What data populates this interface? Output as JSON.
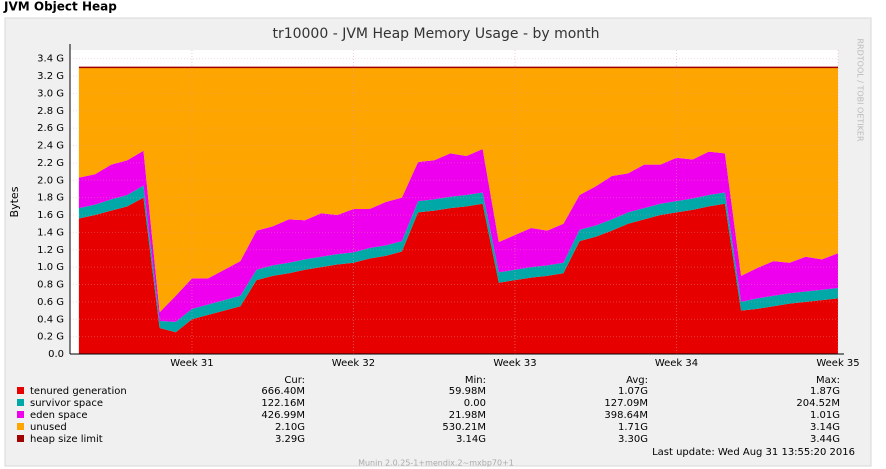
{
  "header": "JVM Object Heap",
  "chart_data": {
    "type": "stacked-area",
    "title": "tr10000 - JVM Heap Memory Usage - by month",
    "y_label": "Bytes",
    "x": [
      30.3,
      30.4,
      30.5,
      30.6,
      30.7,
      30.8,
      30.9,
      31.0,
      31.1,
      31.2,
      31.3,
      31.4,
      31.5,
      31.6,
      31.7,
      31.8,
      31.9,
      32.0,
      32.1,
      32.2,
      32.3,
      32.4,
      32.5,
      32.6,
      32.7,
      32.8,
      32.9,
      33.0,
      33.1,
      33.2,
      33.3,
      33.4,
      33.5,
      33.6,
      33.7,
      33.8,
      33.9,
      34.0,
      34.1,
      34.2,
      34.3,
      34.4,
      34.5,
      34.6,
      34.7,
      34.8,
      34.9,
      35.0
    ],
    "xlim": [
      30.245,
      35.0
    ],
    "xticks": [
      {
        "value": 31,
        "label": "Week 31"
      },
      {
        "value": 32,
        "label": "Week 32"
      },
      {
        "value": 33,
        "label": "Week 33"
      },
      {
        "value": 34,
        "label": "Week 34"
      },
      {
        "value": 35,
        "label": "Week 35"
      }
    ],
    "ylim": [
      0,
      3.5
    ],
    "yticks": [
      {
        "value": 0,
        "label": "0.0"
      },
      {
        "value": 0.2,
        "label": "0.2 G"
      },
      {
        "value": 0.4,
        "label": "0.4 G"
      },
      {
        "value": 0.6,
        "label": "0.6 G"
      },
      {
        "value": 0.8,
        "label": "0.8 G"
      },
      {
        "value": 1.0,
        "label": "1.0 G"
      },
      {
        "value": 1.2,
        "label": "1.2 G"
      },
      {
        "value": 1.4,
        "label": "1.4 G"
      },
      {
        "value": 1.6,
        "label": "1.6 G"
      },
      {
        "value": 1.8,
        "label": "1.8 G"
      },
      {
        "value": 2.0,
        "label": "2.0 G"
      },
      {
        "value": 2.2,
        "label": "2.2 G"
      },
      {
        "value": 2.4,
        "label": "2.4 G"
      },
      {
        "value": 2.6,
        "label": "2.6 G"
      },
      {
        "value": 2.8,
        "label": "2.8 G"
      },
      {
        "value": 3.0,
        "label": "3.0 G"
      },
      {
        "value": 3.2,
        "label": "3.2 G"
      },
      {
        "value": 3.4,
        "label": "3.4 G"
      }
    ],
    "grid": true,
    "series": [
      {
        "name": "tenured generation",
        "color": "#e60000",
        "stack": true,
        "values": [
          1.56,
          1.6,
          1.65,
          1.7,
          1.8,
          0.3,
          0.25,
          0.4,
          0.45,
          0.5,
          0.55,
          0.85,
          0.9,
          0.93,
          0.97,
          1.0,
          1.03,
          1.05,
          1.1,
          1.13,
          1.18,
          1.63,
          1.65,
          1.68,
          1.7,
          1.73,
          0.82,
          0.85,
          0.88,
          0.9,
          0.93,
          1.3,
          1.35,
          1.42,
          1.5,
          1.55,
          1.6,
          1.63,
          1.66,
          1.7,
          1.73,
          0.5,
          0.52,
          0.55,
          0.58,
          0.6,
          0.62,
          0.64
        ]
      },
      {
        "name": "survivor space",
        "color": "#00a8a8",
        "stack": true,
        "values": [
          0.12,
          0.12,
          0.13,
          0.13,
          0.14,
          0.08,
          0.12,
          0.12,
          0.12,
          0.12,
          0.12,
          0.12,
          0.12,
          0.12,
          0.12,
          0.12,
          0.12,
          0.12,
          0.12,
          0.12,
          0.12,
          0.13,
          0.13,
          0.13,
          0.13,
          0.13,
          0.12,
          0.12,
          0.12,
          0.12,
          0.12,
          0.13,
          0.13,
          0.13,
          0.13,
          0.13,
          0.13,
          0.13,
          0.13,
          0.13,
          0.13,
          0.1,
          0.12,
          0.12,
          0.12,
          0.12,
          0.12,
          0.12
        ]
      },
      {
        "name": "eden space",
        "color": "#ee00ee",
        "stack": true,
        "values": [
          0.35,
          0.35,
          0.4,
          0.4,
          0.4,
          0.1,
          0.3,
          0.35,
          0.3,
          0.35,
          0.4,
          0.45,
          0.45,
          0.5,
          0.45,
          0.5,
          0.45,
          0.5,
          0.45,
          0.5,
          0.5,
          0.45,
          0.45,
          0.5,
          0.45,
          0.5,
          0.35,
          0.4,
          0.45,
          0.4,
          0.45,
          0.4,
          0.45,
          0.5,
          0.45,
          0.5,
          0.45,
          0.5,
          0.45,
          0.5,
          0.45,
          0.3,
          0.35,
          0.4,
          0.35,
          0.4,
          0.35,
          0.4
        ]
      },
      {
        "name": "unused",
        "color": "#ffa500",
        "stack": true,
        "values": [
          1.27,
          1.23,
          1.12,
          1.07,
          0.96,
          2.82,
          2.63,
          2.43,
          2.43,
          2.33,
          2.23,
          1.88,
          1.83,
          1.75,
          1.76,
          1.68,
          1.7,
          1.63,
          1.63,
          1.55,
          1.5,
          1.09,
          1.07,
          0.99,
          1.02,
          0.94,
          2.01,
          1.93,
          1.85,
          1.88,
          1.8,
          1.47,
          1.37,
          1.25,
          1.22,
          1.12,
          1.12,
          1.04,
          1.06,
          0.97,
          0.99,
          2.4,
          2.31,
          2.23,
          2.25,
          2.18,
          2.21,
          2.14
        ]
      },
      {
        "name": "heap size limit",
        "color": "#a00000",
        "stack": false,
        "values": [
          3.3,
          3.3,
          3.3,
          3.3,
          3.3,
          3.3,
          3.3,
          3.3,
          3.3,
          3.3,
          3.3,
          3.3,
          3.3,
          3.3,
          3.3,
          3.3,
          3.3,
          3.3,
          3.3,
          3.3,
          3.3,
          3.3,
          3.3,
          3.3,
          3.3,
          3.3,
          3.3,
          3.3,
          3.3,
          3.3,
          3.3,
          3.3,
          3.3,
          3.3,
          3.3,
          3.3,
          3.3,
          3.3,
          3.3,
          3.3,
          3.3,
          3.3,
          3.3,
          3.3,
          3.3,
          3.3,
          3.3,
          3.3
        ]
      }
    ]
  },
  "summary": {
    "headers": [
      "Cur:",
      "Min:",
      "Avg:",
      "Max:"
    ],
    "rows": [
      [
        "666.40M",
        "59.98M",
        "1.07G",
        "1.87G"
      ],
      [
        "122.16M",
        "0.00",
        "127.09M",
        "204.52M"
      ],
      [
        "426.99M",
        "21.98M",
        "398.64M",
        "1.01G"
      ],
      [
        "2.10G",
        "530.21M",
        "1.71G",
        "3.14G"
      ],
      [
        "3.29G",
        "3.14G",
        "3.30G",
        "3.44G"
      ]
    ]
  },
  "last_update": "Last update: Wed Aug 31 13:55:20 2016",
  "version": "Munin 2.0.25-1+mendix.2~mxbp70+1",
  "watermark": "RRDTOOL / TOBI OETIKER"
}
